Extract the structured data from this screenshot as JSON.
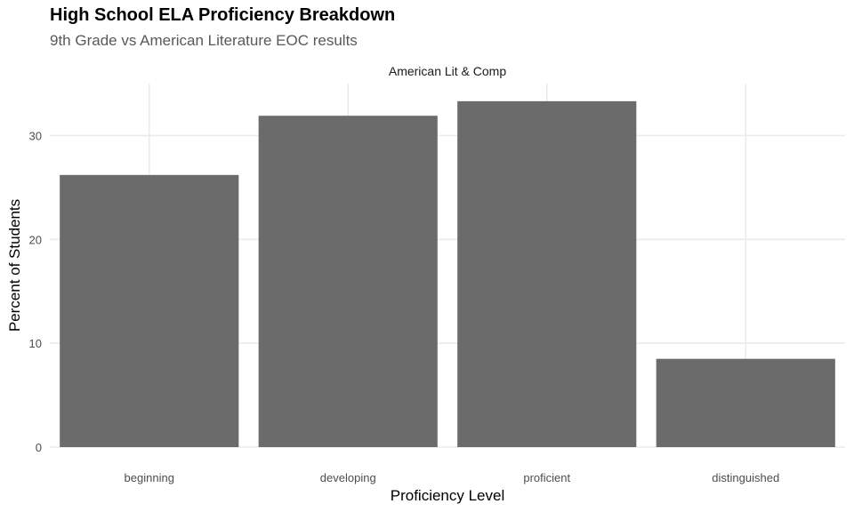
{
  "chart_data": {
    "type": "bar",
    "title": "High School ELA Proficiency Breakdown",
    "subtitle": "9th Grade vs American Literature EOC results",
    "facet_label": "American Lit & Comp",
    "xlabel": "Proficiency Level",
    "ylabel": "Percent of Students",
    "categories": [
      "beginning",
      "developing",
      "proficient",
      "distinguished"
    ],
    "values": [
      26.2,
      31.9,
      33.3,
      8.5
    ],
    "ylim": [
      0,
      35
    ],
    "yticks": [
      0,
      10,
      20,
      30
    ],
    "bar_color": "#6b6b6b",
    "grid": true
  }
}
